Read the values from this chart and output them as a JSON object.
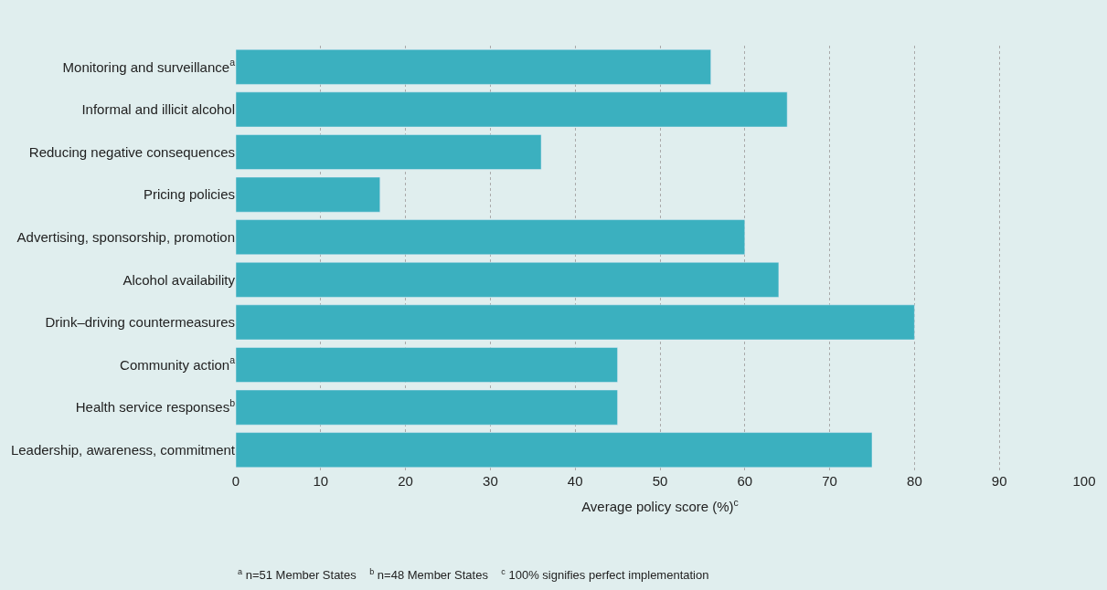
{
  "chart_data": {
    "type": "bar",
    "orientation": "horizontal",
    "categories": [
      "Monitoring and surveillance$^{a}$",
      "Informal and illicit alcohol",
      "Reducing negative consequences",
      "Pricing policies",
      "Advertising, sponsorship, promotion",
      "Alcohol availability",
      "Drink–driving countermeasures",
      "Community action$^{a}$",
      "Health service responses$^{b}$",
      "Leadership, awareness, commitment"
    ],
    "values": [
      56,
      65,
      36,
      17,
      60,
      64,
      80,
      45,
      45,
      75
    ],
    "color": "#3bb0bf",
    "xlabel": "Average policy score (%)$^{c}$",
    "xlim": [
      0,
      100
    ],
    "xticks": [
      0,
      10,
      20,
      30,
      40,
      50,
      60,
      70,
      80,
      90,
      100
    ],
    "grid": "x",
    "annotations": [
      "$^{a}$ n=51 Member States    $^{b}$ n=48 Member States    $^{c}$ 100% signifies perfect implementation"
    ]
  }
}
